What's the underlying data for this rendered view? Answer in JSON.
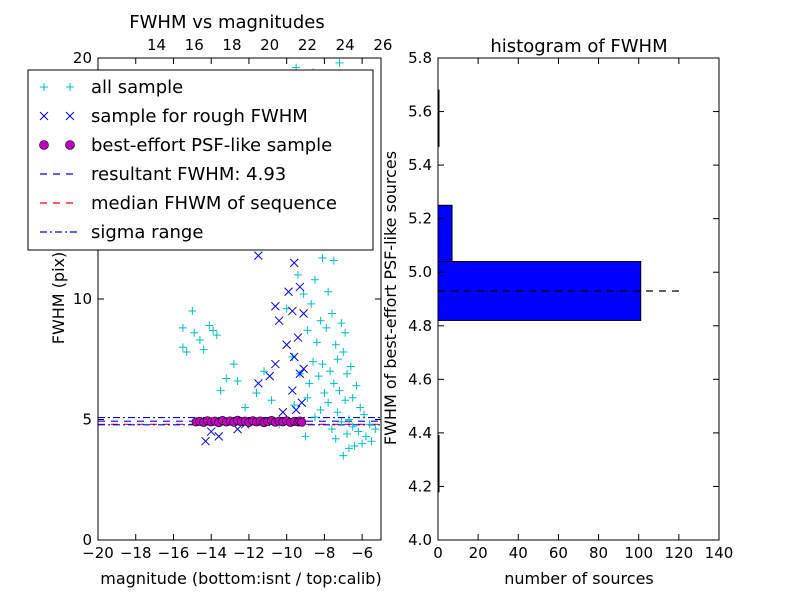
{
  "chart_data": [
    {
      "type": "scatter",
      "title": "FWHM vs magnitudes",
      "xlabel": "magnitude (bottom:isnt / top:calib)",
      "ylabel": "FWHM (pix)",
      "xlim": [
        -20,
        -5
      ],
      "ylim": [
        0,
        20
      ],
      "x_ticks": [
        "−20",
        "−18",
        "−16",
        "−14",
        "−12",
        "−10",
        "−8",
        "−6"
      ],
      "x_tick_values": [
        -20,
        -18,
        -16,
        -14,
        -12,
        -10,
        -8,
        -6
      ],
      "y_ticks": [
        "0",
        "5",
        "10",
        "20"
      ],
      "y_tick_values": [
        0,
        5,
        10,
        20
      ],
      "top_ticks": [
        "14",
        "16",
        "18",
        "20",
        "22",
        "24",
        "26"
      ],
      "top_tick_values": [
        -16.9,
        -14.9,
        -12.9,
        -10.9,
        -8.9,
        -6.9,
        -4.9
      ],
      "series": [
        {
          "name": "all sample",
          "marker": "plus",
          "color": "#00bfbf",
          "points": [
            [
              -15.5,
              8.8
            ],
            [
              -15.5,
              8.0
            ],
            [
              -15.3,
              7.8
            ],
            [
              -15.0,
              9.5
            ],
            [
              -14.9,
              8.6
            ],
            [
              -14.6,
              8.3
            ],
            [
              -14.4,
              7.9
            ],
            [
              -14.1,
              8.9
            ],
            [
              -13.9,
              8.7
            ],
            [
              -13.7,
              8.5
            ],
            [
              -13.5,
              6.2
            ],
            [
              -13.2,
              6.7
            ],
            [
              -12.8,
              7.3
            ],
            [
              -12.6,
              6.6
            ],
            [
              -12.2,
              5.5
            ],
            [
              -11.6,
              6.1
            ],
            [
              -11.2,
              7.0
            ],
            [
              -10.8,
              5.8
            ],
            [
              -10.4,
              4.8
            ],
            [
              -10.1,
              13.8
            ],
            [
              -10.0,
              9.6
            ],
            [
              -9.8,
              12.6
            ],
            [
              -9.7,
              7.6
            ],
            [
              -9.6,
              5.6
            ],
            [
              -9.5,
              19.6
            ],
            [
              -9.4,
              11.0
            ],
            [
              -9.3,
              6.9
            ],
            [
              -9.2,
              17.8
            ],
            [
              -9.1,
              10.2
            ],
            [
              -9.0,
              4.3
            ],
            [
              -9.0,
              14.5
            ],
            [
              -8.9,
              8.7
            ],
            [
              -8.9,
              5.9
            ],
            [
              -8.8,
              16.2
            ],
            [
              -8.8,
              6.5
            ],
            [
              -8.7,
              9.8
            ],
            [
              -8.7,
              12.3
            ],
            [
              -8.6,
              7.4
            ],
            [
              -8.6,
              19.4
            ],
            [
              -8.5,
              5.1
            ],
            [
              -8.5,
              10.8
            ],
            [
              -8.4,
              8.2
            ],
            [
              -8.4,
              13.8
            ],
            [
              -8.3,
              6.8
            ],
            [
              -8.3,
              15.6
            ],
            [
              -8.2,
              9.1
            ],
            [
              -8.2,
              5.4
            ],
            [
              -8.1,
              11.7
            ],
            [
              -8.1,
              7.3
            ],
            [
              -8.0,
              18.2
            ],
            [
              -8.0,
              6.1
            ],
            [
              -7.9,
              8.8
            ],
            [
              -7.9,
              12.9
            ],
            [
              -7.8,
              5.7
            ],
            [
              -7.8,
              10.3
            ],
            [
              -7.7,
              7.0
            ],
            [
              -7.7,
              14.8
            ],
            [
              -7.6,
              4.6
            ],
            [
              -7.6,
              9.4
            ],
            [
              -7.5,
              6.5
            ],
            [
              -7.5,
              11.6
            ],
            [
              -7.4,
              8.1
            ],
            [
              -7.4,
              4.2
            ],
            [
              -7.3,
              7.5
            ],
            [
              -7.3,
              5.3
            ],
            [
              -7.2,
              19.8
            ],
            [
              -7.2,
              6.2
            ],
            [
              -7.1,
              9.0
            ],
            [
              -7.1,
              4.9
            ],
            [
              -7.0,
              7.8
            ],
            [
              -7.0,
              3.5
            ],
            [
              -6.9,
              5.8
            ],
            [
              -6.9,
              8.6
            ],
            [
              -6.8,
              4.4
            ],
            [
              -6.8,
              6.9
            ],
            [
              -6.7,
              5.0
            ],
            [
              -6.7,
              3.8
            ],
            [
              -6.6,
              7.2
            ],
            [
              -6.5,
              4.7
            ],
            [
              -6.5,
              5.9
            ],
            [
              -6.4,
              3.9
            ],
            [
              -6.3,
              6.4
            ],
            [
              -6.2,
              4.5
            ],
            [
              -6.1,
              5.5
            ],
            [
              -6.0,
              4.0
            ],
            [
              -5.9,
              5.2
            ],
            [
              -5.8,
              4.3
            ],
            [
              -5.6,
              4.8
            ],
            [
              -5.5,
              4.1
            ],
            [
              -5.3,
              4.6
            ]
          ]
        },
        {
          "name": "sample for rough FWHM",
          "marker": "x",
          "color": "#0000ff",
          "points": [
            [
              -14.3,
              4.1
            ],
            [
              -14.0,
              4.5
            ],
            [
              -13.6,
              4.3
            ],
            [
              -12.6,
              4.6
            ],
            [
              -12.2,
              4.8
            ],
            [
              -11.5,
              11.8
            ],
            [
              -11.5,
              6.5
            ],
            [
              -11.1,
              4.9
            ],
            [
              -10.9,
              6.8
            ],
            [
              -10.6,
              9.7
            ],
            [
              -10.6,
              7.3
            ],
            [
              -10.4,
              9.1
            ],
            [
              -10.2,
              5.3
            ],
            [
              -10.1,
              13.6
            ],
            [
              -10.0,
              8.1
            ],
            [
              -9.9,
              10.3
            ],
            [
              -9.8,
              14.5
            ],
            [
              -9.7,
              9.5
            ],
            [
              -9.7,
              6.2
            ],
            [
              -9.6,
              11.5
            ],
            [
              -9.6,
              7.6
            ],
            [
              -9.5,
              12.7
            ],
            [
              -9.5,
              5.4
            ],
            [
              -9.4,
              16.2
            ],
            [
              -9.4,
              8.4
            ],
            [
              -9.3,
              10.5
            ],
            [
              -9.3,
              6.9
            ],
            [
              -9.2,
              13.2
            ],
            [
              -9.2,
              5.7
            ],
            [
              -9.1,
              9.4
            ],
            [
              -9.1,
              7.1
            ]
          ]
        },
        {
          "name": "best-effort PSF-like sample",
          "marker": "circle",
          "color": "#bf00bf",
          "points": [
            [
              -14.8,
              4.9
            ],
            [
              -14.6,
              4.92
            ],
            [
              -14.4,
              4.88
            ],
            [
              -14.2,
              4.95
            ],
            [
              -14.0,
              4.9
            ],
            [
              -13.8,
              4.93
            ],
            [
              -13.6,
              4.87
            ],
            [
              -13.4,
              4.96
            ],
            [
              -13.2,
              4.9
            ],
            [
              -13.0,
              4.94
            ],
            [
              -12.8,
              4.89
            ],
            [
              -12.6,
              4.97
            ],
            [
              -12.4,
              4.91
            ],
            [
              -12.2,
              4.93
            ],
            [
              -12.0,
              4.88
            ],
            [
              -11.8,
              4.95
            ],
            [
              -11.6,
              4.9
            ],
            [
              -11.4,
              4.94
            ],
            [
              -11.2,
              4.87
            ],
            [
              -11.0,
              4.92
            ],
            [
              -10.8,
              4.96
            ],
            [
              -10.6,
              4.89
            ],
            [
              -10.4,
              4.93
            ],
            [
              -10.2,
              4.9
            ],
            [
              -10.0,
              4.95
            ],
            [
              -9.8,
              4.88
            ],
            [
              -9.6,
              4.92
            ],
            [
              -9.4,
              4.9
            ],
            [
              -9.3,
              4.94
            ],
            [
              -9.2,
              4.89
            ]
          ]
        }
      ],
      "hlines": [
        {
          "name": "resultant FWHM: 4.93",
          "y": 4.93,
          "color": "#0000ff",
          "style": "dashed"
        },
        {
          "name": "median FHWM of sequence",
          "y": 4.8,
          "color": "#ff0000",
          "style": "dashed"
        },
        {
          "name": "sigma range",
          "y": 5.08,
          "color": "#0000ff",
          "style": "dashdot"
        },
        {
          "name": "sigma range",
          "y": 4.78,
          "color": "#0000ff",
          "style": "dashdot"
        }
      ],
      "legend": {
        "placement": "upper-left",
        "entries": [
          {
            "label": "all sample",
            "marker": "plus",
            "color": "#00bfbf"
          },
          {
            "label": "sample for rough FWHM",
            "marker": "x",
            "color": "#0000ff"
          },
          {
            "label": "best-effort PSF-like sample",
            "marker": "circle",
            "color": "#bf00bf"
          },
          {
            "label": "resultant FWHM: 4.93",
            "marker": "dashed",
            "color": "#0000ff"
          },
          {
            "label": "median FHWM of sequence",
            "marker": "dashed",
            "color": "#ff0000"
          },
          {
            "label": "sigma range",
            "marker": "dashdot",
            "color": "#0000ff"
          }
        ]
      }
    },
    {
      "type": "bar",
      "orientation": "horizontal",
      "title": "histogram of FWHM",
      "xlabel": "number of sources",
      "ylabel": "FWHM of best-effort PSF-like sources",
      "xlim": [
        0,
        140
      ],
      "ylim": [
        4.0,
        5.8
      ],
      "x_ticks": [
        "0",
        "20",
        "40",
        "60",
        "80",
        "100",
        "120",
        "140"
      ],
      "x_tick_values": [
        0,
        20,
        40,
        60,
        80,
        100,
        120,
        140
      ],
      "y_ticks": [
        "4.0",
        "4.2",
        "4.4",
        "4.6",
        "4.8",
        "5.0",
        "5.2",
        "5.4",
        "5.6",
        "5.8"
      ],
      "y_tick_values": [
        4.0,
        4.2,
        4.4,
        4.6,
        4.8,
        5.0,
        5.2,
        5.4,
        5.6,
        5.8
      ],
      "color": "#0000ff",
      "bins": [
        {
          "low": 4.18,
          "high": 4.39,
          "count": 0.5
        },
        {
          "low": 4.39,
          "high": 4.61,
          "count": 0
        },
        {
          "low": 4.61,
          "high": 4.82,
          "count": 0
        },
        {
          "low": 4.82,
          "high": 5.04,
          "count": 101
        },
        {
          "low": 5.04,
          "high": 5.25,
          "count": 7
        },
        {
          "low": 5.25,
          "high": 5.47,
          "count": 0
        },
        {
          "low": 5.47,
          "high": 5.68,
          "count": 0.5
        }
      ],
      "hline": {
        "y": 4.93,
        "xmax": 122,
        "color": "#000000",
        "style": "dashed"
      }
    }
  ]
}
